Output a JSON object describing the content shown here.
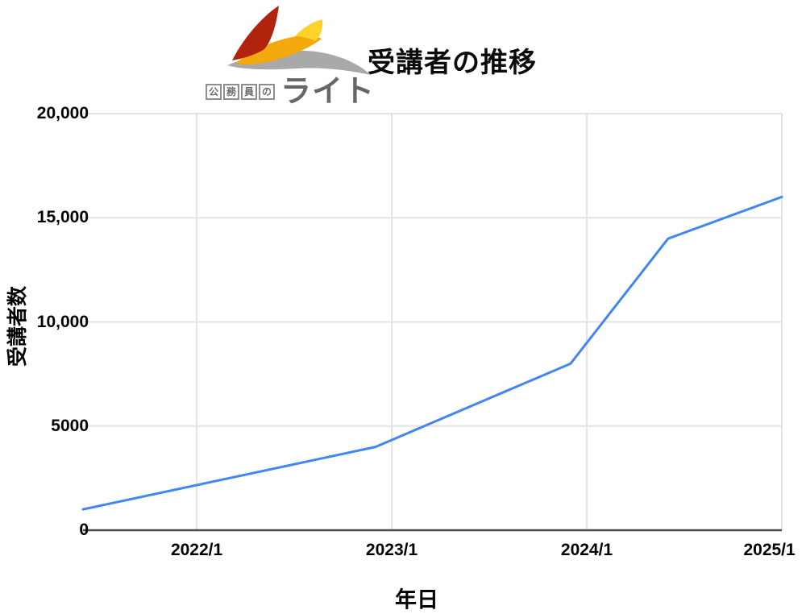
{
  "header": {
    "logo": {
      "boxed_chars": [
        "公",
        "務",
        "員",
        "の"
      ],
      "brand": "ライト",
      "colors": {
        "red": "#b2230d",
        "amber": "#f3a80b",
        "yellow": "#ffd12b",
        "silver": "#a9a9a9",
        "text": "#666666"
      }
    }
  },
  "chart_data": {
    "type": "line",
    "title": "受講者の推移",
    "xlabel": "年日",
    "ylabel": "受講者数",
    "xlim": [
      2021.417,
      2025.0
    ],
    "ylim": [
      0,
      20000
    ],
    "grid": true,
    "legend": "none",
    "line_color": "#4285f4",
    "grid_color": "#e3e3e3",
    "axis_color": "#4a4a4a",
    "x_ticks": [
      {
        "value": 2022.0,
        "label": "2022/1"
      },
      {
        "value": 2023.0,
        "label": "2023/1"
      },
      {
        "value": 2024.0,
        "label": "2024/1"
      },
      {
        "value": 2025.0,
        "label": "2025/1"
      }
    ],
    "y_ticks": [
      {
        "value": 0,
        "label": "0"
      },
      {
        "value": 5000,
        "label": "5000"
      },
      {
        "value": 10000,
        "label": "10,000"
      },
      {
        "value": 15000,
        "label": "15,000"
      },
      {
        "value": 20000,
        "label": "20,000"
      }
    ],
    "series": [
      {
        "name": "受講者数",
        "points": [
          {
            "date": "2021/6",
            "x": 2021.417,
            "value": 1000
          },
          {
            "date": "2022/12",
            "x": 2022.917,
            "value": 4000
          },
          {
            "date": "2023/12",
            "x": 2023.917,
            "value": 8000
          },
          {
            "date": "2024/6",
            "x": 2024.417,
            "value": 14000
          },
          {
            "date": "2025/1",
            "x": 2025.0,
            "value": 16000
          }
        ]
      }
    ]
  }
}
